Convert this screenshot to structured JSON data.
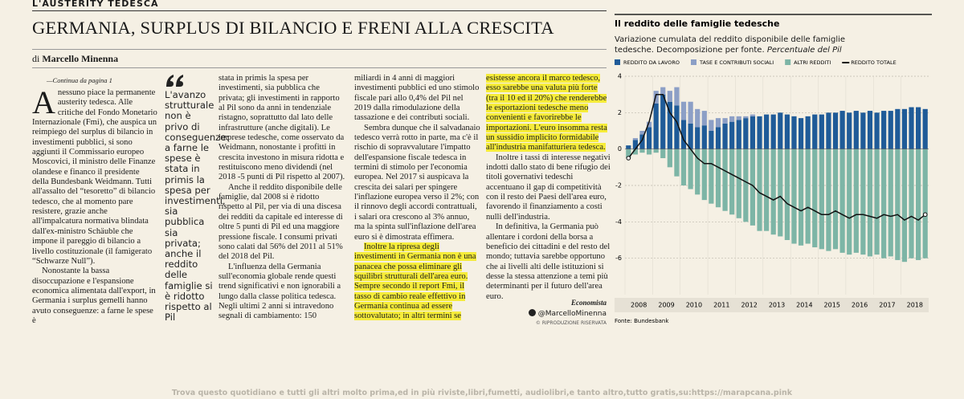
{
  "header": {
    "section": "L'AUSTERITY TEDESCA",
    "title": "GERMANIA, SURPLUS DI BILANCIO E FRENI ALLA CRESCITA",
    "byline_prefix": "di",
    "author": "Marcello Minenna",
    "continued": "—Continua da pagina 1"
  },
  "quote": "L'avanzo strutturale non è privo di conseguenze: a farne le spese è stata in primis la spesa per investimenti, sia pubblica sia privata; anche il reddito delle famiglie si è ridotto rispetto al Pil",
  "article": {
    "columns": [
      {
        "paragraphs": [
          {
            "text": "A nessuno piace la permanente austerity tedesca. Alle critiche del Fondo Monetario Internazionale (Fmi), che auspica un reimpiego del surplus di bilancio in investimenti pubblici, si sono aggiunti il Commissario europeo Moscovici, il ministro delle Finanze olandese e financo il presidente della Bundesbank Weidmann. Tutti all'assalto del “tesoretto” di bilancio tedesco, che al momento pare resistere, grazie anche all'impalcatura normativa blindata dall'ex-ministro Schäuble che impone il pareggio di bilancio a livello costituzionale (il famigerato “Schwarze Null”)."
          },
          {
            "text": "Nonostante la bassa disoccupazione e l'espansione economica alimentata dall'export, in Germania i surplus gemelli hanno avuto conseguenze: a farne le spese è"
          }
        ]
      },
      {
        "paragraphs": [
          {
            "text": "stata in primis la spesa per investimenti, sia pubblica che privata; gli investimenti in rapporto al Pil sono da anni in tendenziale ristagno, soprattutto dal lato delle infrastrutture (anche digitali). Le imprese tedesche, come osservato da Weidmann, nonostante i profitti in crescita investono in misura ridotta e restituiscono meno dividendi (nel 2018 -5 punti di Pil rispetto al 2007)."
          },
          {
            "text": "Anche il reddito disponibile delle famiglie, dal 2008 si è ridotto rispetto al Pil, per via di una discesa dei redditi da capitale ed interesse di oltre 5 punti di Pil ed una maggiore pressione fiscale. I consumi privati sono calati dal 56% del 2011 al 51% del 2018 del Pil."
          },
          {
            "text": "L'influenza della Germania sull'economia globale rende questi trend significativi e non ignorabili a lungo dalla classe politica tedesca. Negli ultimi 2 anni si intravedono segnali di cambiamento: 150"
          }
        ]
      },
      {
        "paragraphs": [
          {
            "text": "miliardi in 4 anni di maggiori investimenti pubblici ed uno stimolo fiscale pari allo 0,4% del Pil nel 2019 dalla rimodulazione della tassazione e dei contributi sociali."
          },
          {
            "text": "Sembra dunque che il salvadanaio tedesco verrà rotto in parte, ma c'è il rischio di sopravvalutare l'impatto dell'espansione fiscale tedesca in termini di stimolo per l'economia europea. Nel 2017 si auspicava la crescita dei salari per spingere l'inflazione europea verso il 2%; con il rinnovo degli accordi contrattuali, i salari ora crescono al 3% annuo, ma la spinta sull'inflazione dell'area euro si è dimostrata effimera."
          },
          {
            "text": "Inoltre la ripresa degli investimenti in Germania non è una panacea che possa eliminare gli squilibri strutturali dell'area euro. Sempre secondo il report Fmi, il tasso di cambio reale effettivo in Germania continua ad essere sottovalutato; in altri termini se",
            "highlight": true
          }
        ]
      },
      {
        "paragraphs": [
          {
            "text": "esistesse ancora il marco tedesco, esso sarebbe una valuta più forte (tra il 10 ed il 20%) che renderebbe le esportazioni tedesche meno convenienti e favorirebbe le importazioni. L'euro insomma resta un sussidio implicito formidabile all'industria manifatturiera tedesca.",
            "highlight": true
          },
          {
            "text": "Inoltre i tassi di interesse negativi indotti dallo stato di bene rifugio dei titoli governativi tedeschi accentuano il gap di competitività con il resto dei Paesi dell'area euro, favorendo il finanziamento a costi nulli dell'industria."
          },
          {
            "text": "In definitiva, la Germania può allentare i cordoni della borsa a beneficio dei cittadini e del resto del mondo; tuttavia sarebbe opportuno che ai livelli alti delle istituzioni si desse la stessa attenzione a temi più determinanti per il futuro dell'area euro."
          }
        ]
      }
    ],
    "signature": {
      "role": "Economista",
      "handle": "@MarcelloMinenna",
      "rights": "© RIPRODUZIONE RISERVATA"
    }
  },
  "chart_data": {
    "type": "bar",
    "title": "Il reddito delle famiglie tedesche",
    "subtitle": "Variazione cumulata del reddito disponibile delle famiglie tedesche. Decomposizione per fonte.",
    "unit_note": "Percentuale del Pil",
    "source": "Fonte: Bundesbank",
    "stacked": true,
    "categories": [
      "2008",
      null,
      null,
      null,
      "2009",
      null,
      null,
      null,
      "2010",
      null,
      null,
      null,
      "2011",
      null,
      null,
      null,
      "2012",
      null,
      null,
      null,
      "2013",
      null,
      null,
      null,
      "2014",
      null,
      null,
      null,
      "2015",
      null,
      null,
      null,
      "2016",
      null,
      null,
      null,
      "2017",
      null,
      null,
      null,
      "2018",
      null,
      null,
      null
    ],
    "series": [
      {
        "name": "REDDITO DA LAVORO",
        "color": "#1f5b98",
        "type": "bar",
        "values": [
          0.2,
          0.5,
          0.8,
          1.2,
          2.5,
          3.0,
          2.6,
          2.4,
          1.6,
          1.4,
          1.2,
          1.3,
          1.0,
          1.2,
          1.4,
          1.5,
          1.6,
          1.7,
          1.8,
          1.8,
          1.9,
          1.9,
          2.0,
          1.9,
          1.8,
          1.7,
          1.8,
          1.9,
          1.9,
          2.0,
          2.0,
          2.1,
          2.0,
          2.1,
          2.0,
          2.1,
          2.0,
          2.1,
          2.1,
          2.2,
          2.2,
          2.3,
          2.3,
          2.2
        ]
      },
      {
        "name": "TASE E CONTRIBUTI SOCIALI",
        "color": "#8c9fc6",
        "type": "bar",
        "values": [
          0,
          0.1,
          0.2,
          0.3,
          0.7,
          0.4,
          0.6,
          1.0,
          1.0,
          1.2,
          1.0,
          0.8,
          0.6,
          0.5,
          0.3,
          0.3,
          0.2,
          0.1,
          0.1,
          0,
          0,
          0,
          0,
          0,
          0,
          0,
          0,
          0,
          0,
          0,
          0,
          0,
          0,
          0,
          0,
          0,
          0,
          0,
          0,
          0,
          0,
          0,
          0,
          0
        ]
      },
      {
        "name": "ALTRI REDDITI",
        "color": "#7db5a6",
        "type": "bar",
        "values": [
          -0.5,
          -0.3,
          -0.2,
          -0.3,
          -0.2,
          -0.5,
          -1.0,
          -1.5,
          -2.0,
          -2.2,
          -2.5,
          -2.8,
          -3.0,
          -3.2,
          -3.4,
          -3.6,
          -3.8,
          -4.0,
          -4.2,
          -4.5,
          -4.5,
          -4.7,
          -4.8,
          -5.0,
          -5.2,
          -5.3,
          -5.2,
          -5.4,
          -5.5,
          -5.6,
          -5.5,
          -5.7,
          -5.8,
          -5.7,
          -5.8,
          -5.9,
          -5.8,
          -6.0,
          -5.9,
          -6.1,
          -6.2,
          -6.0,
          -6.1,
          -6.0
        ]
      },
      {
        "name": "REDDITO TOTALE",
        "color": "#111111",
        "type": "line",
        "values": [
          -0.5,
          0,
          0.5,
          1.5,
          3.0,
          3.0,
          2.0,
          1.5,
          0.5,
          0,
          -0.5,
          -0.8,
          -0.8,
          -1.0,
          -1.2,
          -1.4,
          -1.6,
          -1.8,
          -2.0,
          -2.4,
          -2.6,
          -2.8,
          -2.6,
          -3.0,
          -3.2,
          -3.4,
          -3.2,
          -3.4,
          -3.6,
          -3.6,
          -3.4,
          -3.6,
          -3.8,
          -3.6,
          -3.6,
          -3.7,
          -3.8,
          -3.6,
          -3.7,
          -3.6,
          -3.9,
          -3.7,
          -3.9,
          -3.6
        ]
      }
    ],
    "ylim": [
      -8,
      4
    ],
    "yticks": [
      4,
      2,
      0,
      -2,
      -4,
      -6
    ],
    "grid": true
  },
  "footer": "Trova questo quotidiano e tutti gli altri molto prima,ed in più riviste,libri,fumetti, audiolibri,e tanto altro,tutto gratis,su:https://marapcana.pink"
}
